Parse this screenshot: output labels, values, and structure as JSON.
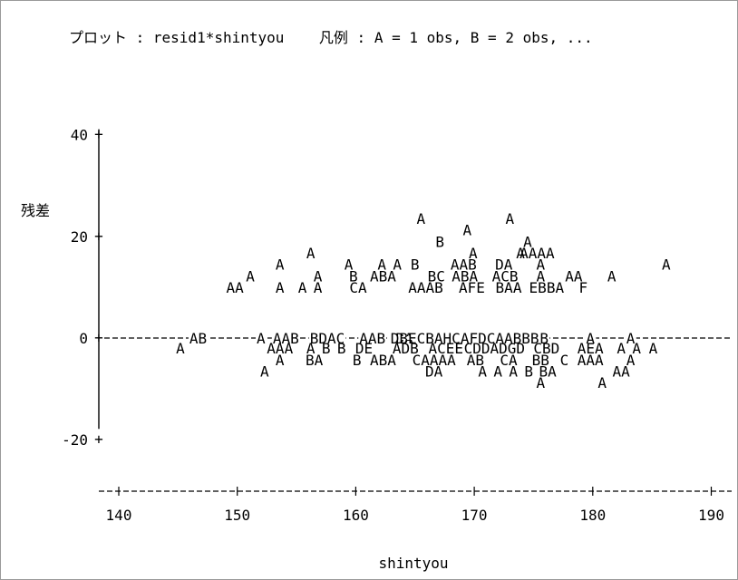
{
  "title": "プロット : resid1*shintyou    凡例 : A = 1 obs, B = 2 obs, ...",
  "chart_data": {
    "type": "scatter",
    "title": "プロット : resid1*shintyou    凡例 : A = 1 obs, B = 2 obs, ...",
    "xlabel": "shintyou",
    "ylabel": "残差",
    "xlim": [
      138,
      192
    ],
    "ylim": [
      -20,
      40
    ],
    "x_ticks": [
      "140",
      "150",
      "160",
      "170",
      "180",
      "190"
    ],
    "y_ticks": [
      "40",
      "20",
      "0",
      "-20"
    ],
    "legend": "A = 1 obs, B = 2 obs, ...",
    "points": [
      {
        "x": 165.5,
        "y": 23.5,
        "symbol": "A"
      },
      {
        "x": 173.0,
        "y": 23.5,
        "symbol": "A"
      },
      {
        "x": 169.4,
        "y": 21.3,
        "symbol": "A"
      },
      {
        "x": 167.1,
        "y": 19.0,
        "symbol": "B"
      },
      {
        "x": 174.5,
        "y": 19.0,
        "symbol": "A"
      },
      {
        "x": 156.2,
        "y": 16.8,
        "symbol": "A"
      },
      {
        "x": 169.9,
        "y": 16.8,
        "symbol": "A"
      },
      {
        "x": 173.9,
        "y": 16.8,
        "symbol": "A"
      },
      {
        "x": 175.3,
        "y": 16.8,
        "symbol": "AAAA"
      },
      {
        "x": 153.6,
        "y": 14.5,
        "symbol": "A"
      },
      {
        "x": 159.4,
        "y": 14.5,
        "symbol": "A"
      },
      {
        "x": 162.2,
        "y": 14.5,
        "symbol": "A"
      },
      {
        "x": 163.5,
        "y": 14.5,
        "symbol": "A"
      },
      {
        "x": 165.0,
        "y": 14.5,
        "symbol": "B"
      },
      {
        "x": 169.1,
        "y": 14.5,
        "symbol": "AAB"
      },
      {
        "x": 172.5,
        "y": 14.5,
        "symbol": "DA"
      },
      {
        "x": 175.6,
        "y": 14.5,
        "symbol": "A"
      },
      {
        "x": 186.2,
        "y": 14.5,
        "symbol": "A"
      },
      {
        "x": 151.1,
        "y": 12.2,
        "symbol": "A"
      },
      {
        "x": 156.8,
        "y": 12.2,
        "symbol": "A"
      },
      {
        "x": 159.8,
        "y": 12.2,
        "symbol": "B"
      },
      {
        "x": 162.3,
        "y": 12.2,
        "symbol": "ABA"
      },
      {
        "x": 166.8,
        "y": 12.2,
        "symbol": "BC"
      },
      {
        "x": 169.2,
        "y": 12.2,
        "symbol": "ABA"
      },
      {
        "x": 172.6,
        "y": 12.2,
        "symbol": "ACB"
      },
      {
        "x": 175.6,
        "y": 12.2,
        "symbol": "A"
      },
      {
        "x": 178.4,
        "y": 12.2,
        "symbol": "AA"
      },
      {
        "x": 181.6,
        "y": 12.2,
        "symbol": "A"
      },
      {
        "x": 149.8,
        "y": 10.0,
        "symbol": "AA"
      },
      {
        "x": 153.6,
        "y": 10.0,
        "symbol": "A"
      },
      {
        "x": 155.5,
        "y": 10.0,
        "symbol": "A"
      },
      {
        "x": 156.8,
        "y": 10.0,
        "symbol": "A"
      },
      {
        "x": 160.2,
        "y": 10.0,
        "symbol": "CA"
      },
      {
        "x": 165.9,
        "y": 10.0,
        "symbol": "AAAB"
      },
      {
        "x": 169.8,
        "y": 10.0,
        "symbol": "AFE"
      },
      {
        "x": 172.9,
        "y": 10.0,
        "symbol": "BAA"
      },
      {
        "x": 176.1,
        "y": 10.0,
        "symbol": "EBBA"
      },
      {
        "x": 179.2,
        "y": 10.0,
        "symbol": "F"
      },
      {
        "x": 146.7,
        "y": 0.0,
        "symbol": "AB"
      },
      {
        "x": 152.0,
        "y": 0.0,
        "symbol": "A"
      },
      {
        "x": 154.1,
        "y": 0.0,
        "symbol": "AAB"
      },
      {
        "x": 157.6,
        "y": 0.0,
        "symbol": "BDAC"
      },
      {
        "x": 161.4,
        "y": 0.0,
        "symbol": "AAB"
      },
      {
        "x": 164.1,
        "y": 0.0,
        "symbol": "DA"
      },
      {
        "x": 169.2,
        "y": 0.0,
        "symbol": "DBECBAHCAFDCAABBB"
      },
      {
        "x": 175.9,
        "y": 0.0,
        "symbol": "B"
      },
      {
        "x": 179.8,
        "y": 0.0,
        "symbol": "A"
      },
      {
        "x": 183.2,
        "y": 0.0,
        "symbol": "A"
      },
      {
        "x": 145.2,
        "y": -2.0,
        "symbol": "A"
      },
      {
        "x": 153.6,
        "y": -2.0,
        "symbol": "AAA"
      },
      {
        "x": 156.2,
        "y": -2.0,
        "symbol": "A"
      },
      {
        "x": 157.5,
        "y": -2.0,
        "symbol": "B"
      },
      {
        "x": 158.8,
        "y": -2.0,
        "symbol": "B"
      },
      {
        "x": 160.7,
        "y": -2.0,
        "symbol": "DE"
      },
      {
        "x": 164.2,
        "y": -2.0,
        "symbol": "ADB"
      },
      {
        "x": 167.6,
        "y": -2.0,
        "symbol": "ACEE"
      },
      {
        "x": 171.7,
        "y": -2.0,
        "symbol": "CDDADGD"
      },
      {
        "x": 176.1,
        "y": -2.0,
        "symbol": "CBD"
      },
      {
        "x": 179.8,
        "y": -2.0,
        "symbol": "AEA"
      },
      {
        "x": 182.4,
        "y": -2.0,
        "symbol": "A"
      },
      {
        "x": 183.7,
        "y": -2.0,
        "symbol": "A"
      },
      {
        "x": 185.1,
        "y": -2.0,
        "symbol": "A"
      },
      {
        "x": 153.6,
        "y": -4.3,
        "symbol": "A"
      },
      {
        "x": 156.5,
        "y": -4.3,
        "symbol": "BA"
      },
      {
        "x": 160.1,
        "y": -4.3,
        "symbol": "B"
      },
      {
        "x": 162.3,
        "y": -4.3,
        "symbol": "ABA"
      },
      {
        "x": 166.6,
        "y": -4.3,
        "symbol": "CAAAA"
      },
      {
        "x": 170.1,
        "y": -4.3,
        "symbol": "AB"
      },
      {
        "x": 172.9,
        "y": -4.3,
        "symbol": "CA"
      },
      {
        "x": 175.6,
        "y": -4.3,
        "symbol": "BB"
      },
      {
        "x": 177.6,
        "y": -4.3,
        "symbol": "C"
      },
      {
        "x": 179.8,
        "y": -4.3,
        "symbol": "AAA"
      },
      {
        "x": 183.2,
        "y": -4.3,
        "symbol": "A"
      },
      {
        "x": 152.3,
        "y": -6.5,
        "symbol": "A"
      },
      {
        "x": 166.6,
        "y": -6.5,
        "symbol": "DA"
      },
      {
        "x": 170.7,
        "y": -6.5,
        "symbol": "A"
      },
      {
        "x": 172.0,
        "y": -6.5,
        "symbol": "A"
      },
      {
        "x": 173.3,
        "y": -6.5,
        "symbol": "A"
      },
      {
        "x": 174.6,
        "y": -6.5,
        "symbol": "B"
      },
      {
        "x": 176.2,
        "y": -6.5,
        "symbol": "BA"
      },
      {
        "x": 182.4,
        "y": -6.5,
        "symbol": "AA"
      },
      {
        "x": 175.6,
        "y": -8.7,
        "symbol": "A"
      },
      {
        "x": 180.8,
        "y": -8.7,
        "symbol": "A"
      }
    ]
  }
}
